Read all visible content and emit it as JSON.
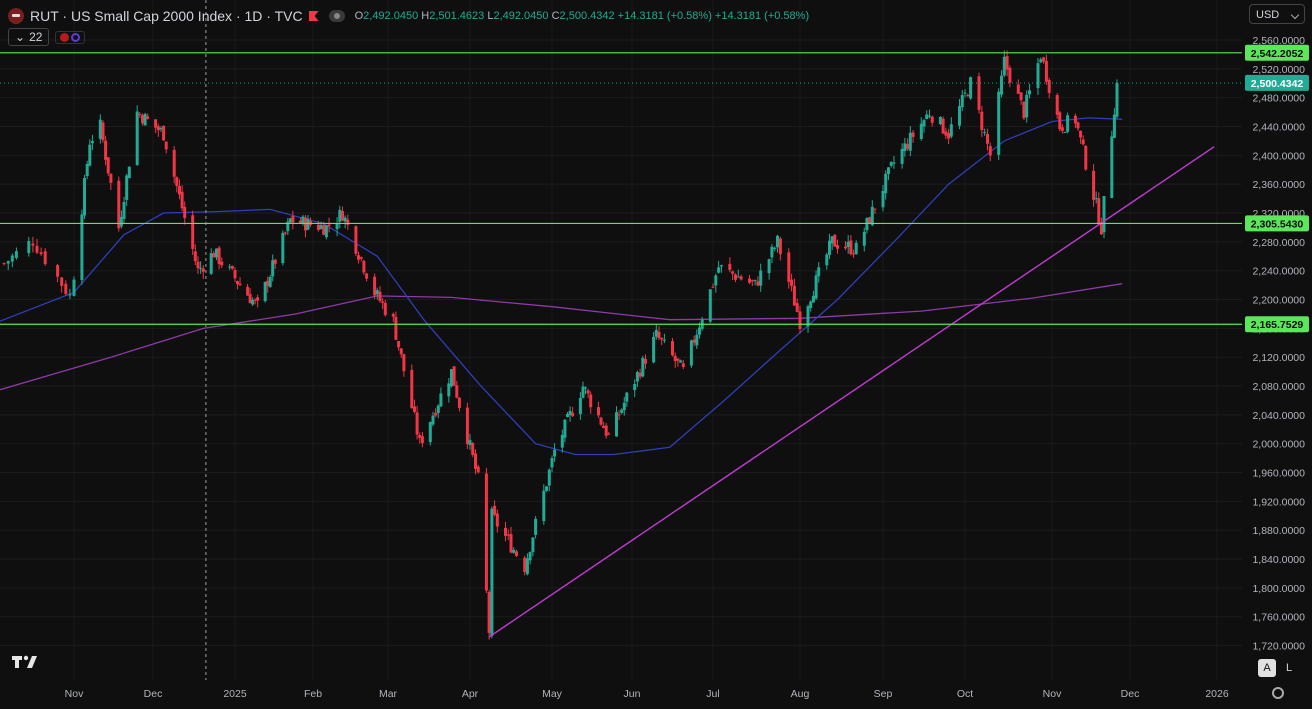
{
  "header": {
    "symbol_title": "RUT · US Small Cap 2000 Index · 1D · TVC",
    "ohlc": {
      "o_label": "O",
      "o_value": "2,492.0450",
      "h_label": "H",
      "h_value": "2,501.4623",
      "l_label": "L",
      "l_value": "2,492.0450",
      "c_label": "C",
      "c_value": "2,500.4342",
      "change": "+14.3181 (+0.58%)",
      "change2": "+14.3181 (+0.58%)"
    },
    "indicator_count": "22",
    "currency": "USD"
  },
  "controls": {
    "auto_label": "A",
    "log_label": "L"
  },
  "colors": {
    "up": "#22ab94",
    "down": "#f23645",
    "ma_fast": "#2f3fb8",
    "ma_slow": "#8e3aa8",
    "trendline": "#c23bd4",
    "hline": "#5ce65c"
  },
  "chart_data": {
    "type": "candlestick",
    "symbol": "RUT",
    "interval": "1D",
    "ylim": [
      1700,
      2580
    ],
    "y_ticks": [
      "2,560.0000",
      "2,520.0000",
      "2,480.0000",
      "2,440.0000",
      "2,400.0000",
      "2,360.0000",
      "2,320.0000",
      "2,280.0000",
      "2,240.0000",
      "2,200.0000",
      "2,160.0000",
      "2,120.0000",
      "2,080.0000",
      "2,040.0000",
      "2,000.0000",
      "1,960.0000",
      "1,920.0000",
      "1,880.0000",
      "1,840.0000",
      "1,800.0000",
      "1,760.0000",
      "1,720.0000"
    ],
    "x_ticks": [
      {
        "label": "Nov",
        "date": "2024-11-01"
      },
      {
        "label": "Dec",
        "date": "2024-12-01"
      },
      {
        "label": "2025",
        "date": "2025-01-01"
      },
      {
        "label": "Feb",
        "date": "2025-02-01"
      },
      {
        "label": "Mar",
        "date": "2025-03-01"
      },
      {
        "label": "Apr",
        "date": "2025-04-01"
      },
      {
        "label": "May",
        "date": "2025-05-01"
      },
      {
        "label": "Jun",
        "date": "2025-06-01"
      },
      {
        "label": "Jul",
        "date": "2025-07-01"
      },
      {
        "label": "Aug",
        "date": "2025-08-01"
      },
      {
        "label": "Sep",
        "date": "2025-09-01"
      },
      {
        "label": "Oct",
        "date": "2025-10-01"
      },
      {
        "label": "Nov",
        "date": "2025-11-01"
      },
      {
        "label": "Dec",
        "date": "2025-12-01"
      },
      {
        "label": "2026",
        "date": "2026-01-01"
      }
    ],
    "horizontal_levels": [
      {
        "value": 2542.2052,
        "label": "2,542.2052"
      },
      {
        "value": 2305.543,
        "label": "2,305.5430"
      },
      {
        "value": 2165.7529,
        "label": "2,165.7529"
      }
    ],
    "last_price": {
      "value": 2500.4342,
      "label": "2,500.4342"
    },
    "trendline": {
      "start": {
        "date": "2025-04-08",
        "value": 1732
      },
      "end": {
        "date": "2025-12-31",
        "value": 2412
      }
    },
    "key_points": [
      {
        "date": "2024-10-15",
        "value": 2250
      },
      {
        "date": "2024-10-22",
        "value": 2282
      },
      {
        "date": "2024-10-31",
        "value": 2205
      },
      {
        "date": "2024-11-07",
        "value": 2420
      },
      {
        "date": "2024-11-11",
        "value": 2440
      },
      {
        "date": "2024-11-18",
        "value": 2300
      },
      {
        "date": "2024-11-25",
        "value": 2460
      },
      {
        "date": "2024-12-05",
        "value": 2430
      },
      {
        "date": "2024-12-18",
        "value": 2240
      },
      {
        "date": "2024-12-24",
        "value": 2265
      },
      {
        "date": "2025-01-10",
        "value": 2190
      },
      {
        "date": "2025-01-23",
        "value": 2310
      },
      {
        "date": "2025-02-06",
        "value": 2300
      },
      {
        "date": "2025-02-12",
        "value": 2320
      },
      {
        "date": "2025-02-24",
        "value": 2210
      },
      {
        "date": "2025-03-03",
        "value": 2170
      },
      {
        "date": "2025-03-13",
        "value": 2000
      },
      {
        "date": "2025-03-25",
        "value": 2100
      },
      {
        "date": "2025-04-04",
        "value": 1950
      },
      {
        "date": "2025-04-08",
        "value": 1740
      },
      {
        "date": "2025-04-09",
        "value": 1900
      },
      {
        "date": "2025-04-21",
        "value": 1830
      },
      {
        "date": "2025-05-02",
        "value": 1990
      },
      {
        "date": "2025-05-13",
        "value": 2080
      },
      {
        "date": "2025-05-23",
        "value": 2010
      },
      {
        "date": "2025-06-10",
        "value": 2150
      },
      {
        "date": "2025-06-20",
        "value": 2100
      },
      {
        "date": "2025-07-03",
        "value": 2245
      },
      {
        "date": "2025-07-16",
        "value": 2220
      },
      {
        "date": "2025-07-24",
        "value": 2280
      },
      {
        "date": "2025-08-01",
        "value": 2170
      },
      {
        "date": "2025-08-13",
        "value": 2280
      },
      {
        "date": "2025-08-22",
        "value": 2270
      },
      {
        "date": "2025-09-05",
        "value": 2390
      },
      {
        "date": "2025-09-18",
        "value": 2460
      },
      {
        "date": "2025-09-25",
        "value": 2430
      },
      {
        "date": "2025-10-03",
        "value": 2500
      },
      {
        "date": "2025-10-10",
        "value": 2400
      },
      {
        "date": "2025-10-15",
        "value": 2530
      },
      {
        "date": "2025-10-22",
        "value": 2460
      },
      {
        "date": "2025-10-28",
        "value": 2540
      },
      {
        "date": "2025-11-04",
        "value": 2440
      },
      {
        "date": "2025-11-10",
        "value": 2450
      },
      {
        "date": "2025-11-20",
        "value": 2300
      },
      {
        "date": "2025-11-26",
        "value": 2500
      }
    ],
    "ma_fast_points": [
      {
        "date": "2024-10-14",
        "value": 2170
      },
      {
        "date": "2024-11-01",
        "value": 2210
      },
      {
        "date": "2024-11-20",
        "value": 2290
      },
      {
        "date": "2024-12-05",
        "value": 2320
      },
      {
        "date": "2024-12-25",
        "value": 2322
      },
      {
        "date": "2025-01-15",
        "value": 2325
      },
      {
        "date": "2025-02-05",
        "value": 2305
      },
      {
        "date": "2025-02-25",
        "value": 2260
      },
      {
        "date": "2025-03-15",
        "value": 2170
      },
      {
        "date": "2025-04-05",
        "value": 2080
      },
      {
        "date": "2025-04-25",
        "value": 2000
      },
      {
        "date": "2025-05-10",
        "value": 1985
      },
      {
        "date": "2025-05-25",
        "value": 1985
      },
      {
        "date": "2025-06-15",
        "value": 1995
      },
      {
        "date": "2025-07-05",
        "value": 2060
      },
      {
        "date": "2025-07-25",
        "value": 2130
      },
      {
        "date": "2025-08-15",
        "value": 2200
      },
      {
        "date": "2025-09-05",
        "value": 2280
      },
      {
        "date": "2025-09-25",
        "value": 2360
      },
      {
        "date": "2025-10-15",
        "value": 2420
      },
      {
        "date": "2025-11-01",
        "value": 2447
      },
      {
        "date": "2025-11-15",
        "value": 2452
      },
      {
        "date": "2025-11-28",
        "value": 2450
      }
    ],
    "ma_slow_points": [
      {
        "date": "2024-10-14",
        "value": 2075
      },
      {
        "date": "2024-11-15",
        "value": 2120
      },
      {
        "date": "2024-12-20",
        "value": 2160
      },
      {
        "date": "2025-01-25",
        "value": 2180
      },
      {
        "date": "2025-02-25",
        "value": 2205
      },
      {
        "date": "2025-03-25",
        "value": 2203
      },
      {
        "date": "2025-05-01",
        "value": 2190
      },
      {
        "date": "2025-06-15",
        "value": 2172
      },
      {
        "date": "2025-08-01",
        "value": 2174
      },
      {
        "date": "2025-09-15",
        "value": 2184
      },
      {
        "date": "2025-10-25",
        "value": 2202
      },
      {
        "date": "2025-11-28",
        "value": 2222
      }
    ]
  }
}
